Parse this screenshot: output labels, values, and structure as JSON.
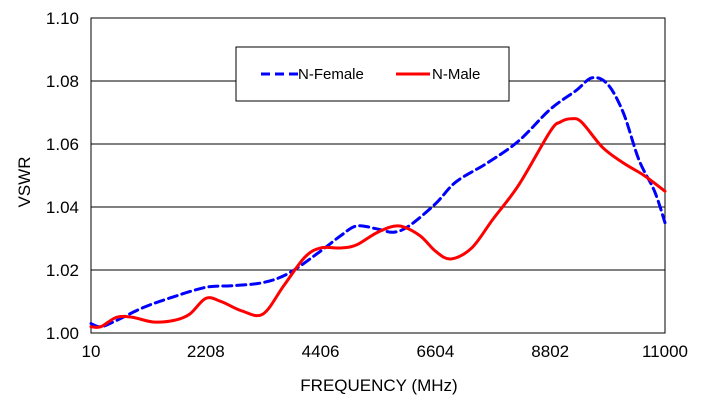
{
  "chart_data": {
    "type": "line",
    "title": "",
    "xlabel": "FREQUENCY (MHz)",
    "ylabel": "VSWR",
    "xlim": [
      10,
      11000
    ],
    "ylim": [
      1.0,
      1.1
    ],
    "x_ticks": [
      10,
      2208,
      4406,
      6604,
      8802,
      11000
    ],
    "x_tick_labels": [
      "10",
      "2208",
      "4406",
      "6604",
      "8802",
      "11000"
    ],
    "y_ticks": [
      1.0,
      1.02,
      1.04,
      1.06,
      1.08,
      1.1
    ],
    "y_tick_labels": [
      "1.00",
      "1.02",
      "1.04",
      "1.06",
      "1.08",
      "1.10"
    ],
    "grid": "horizontal",
    "legend": "top-center",
    "series": [
      {
        "name": "N-Female",
        "color": "#0000ff",
        "style": "dashed",
        "points": [
          [
            10,
            1.003
          ],
          [
            200,
            1.002
          ],
          [
            500,
            1.004
          ],
          [
            1000,
            1.008
          ],
          [
            1500,
            1.011
          ],
          [
            2208,
            1.0145
          ],
          [
            2700,
            1.015
          ],
          [
            3300,
            1.016
          ],
          [
            3800,
            1.019
          ],
          [
            4406,
            1.026
          ],
          [
            4800,
            1.031
          ],
          [
            5100,
            1.034
          ],
          [
            5500,
            1.033
          ],
          [
            5800,
            1.032
          ],
          [
            6100,
            1.034
          ],
          [
            6604,
            1.041
          ],
          [
            7000,
            1.048
          ],
          [
            7600,
            1.054
          ],
          [
            8200,
            1.061
          ],
          [
            8802,
            1.071
          ],
          [
            9300,
            1.077
          ],
          [
            9600,
            1.081
          ],
          [
            9900,
            1.079
          ],
          [
            10200,
            1.07
          ],
          [
            10500,
            1.055
          ],
          [
            10800,
            1.045
          ],
          [
            11000,
            1.035
          ]
        ]
      },
      {
        "name": "N-Male",
        "color": "#ff0000",
        "style": "solid",
        "points": [
          [
            10,
            1.002
          ],
          [
            200,
            1.002
          ],
          [
            500,
            1.005
          ],
          [
            800,
            1.005
          ],
          [
            1200,
            1.0035
          ],
          [
            1600,
            1.004
          ],
          [
            1900,
            1.006
          ],
          [
            2208,
            1.011
          ],
          [
            2500,
            1.01
          ],
          [
            2900,
            1.007
          ],
          [
            3300,
            1.006
          ],
          [
            3700,
            1.015
          ],
          [
            4100,
            1.024
          ],
          [
            4406,
            1.027
          ],
          [
            4800,
            1.027
          ],
          [
            5100,
            1.028
          ],
          [
            5500,
            1.032
          ],
          [
            5900,
            1.034
          ],
          [
            6300,
            1.031
          ],
          [
            6604,
            1.026
          ],
          [
            6900,
            1.0235
          ],
          [
            7300,
            1.027
          ],
          [
            7700,
            1.036
          ],
          [
            8200,
            1.047
          ],
          [
            8802,
            1.064
          ],
          [
            9000,
            1.067
          ],
          [
            9200,
            1.068
          ],
          [
            9400,
            1.067
          ],
          [
            9800,
            1.059
          ],
          [
            10200,
            1.054
          ],
          [
            10600,
            1.05
          ],
          [
            11000,
            1.045
          ]
        ]
      }
    ]
  }
}
